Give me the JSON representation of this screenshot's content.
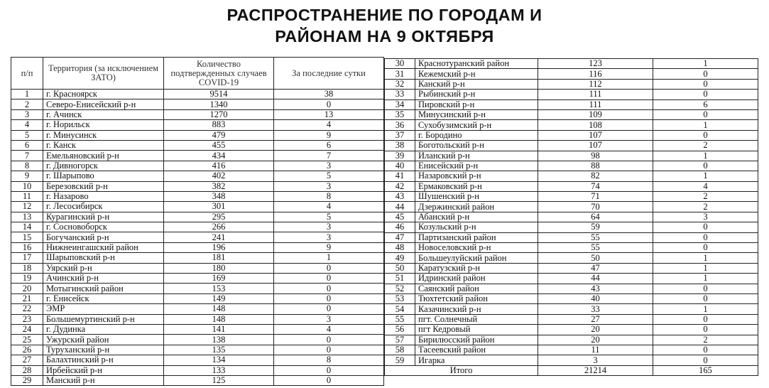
{
  "title": {
    "line1": "РАСПРОСТРАНЕНИЕ ПО ГОРОДАМ И",
    "line2": "РАЙОНАМ НА 9 ОКТЯБРЯ"
  },
  "headers": {
    "num": "п/п",
    "territory": "Территория (за исключением ЗАТО)",
    "total": "Количество подтвержденных случаев COVID-19",
    "day": "За последние сутки"
  },
  "rows": [
    [
      "1",
      "г. Красноярск",
      "9514",
      "38"
    ],
    [
      "2",
      "Северо-Енисейский р-н",
      "1340",
      "0"
    ],
    [
      "3",
      "г. Ачинск",
      "1270",
      "13"
    ],
    [
      "4",
      "г. Норильск",
      "883",
      "4"
    ],
    [
      "5",
      "г. Минусинск",
      "479",
      "9"
    ],
    [
      "6",
      "г. Канск",
      "455",
      "6"
    ],
    [
      "7",
      "Емельяновский р-н",
      "434",
      "7"
    ],
    [
      "8",
      "г. Дивногорск",
      "416",
      "3"
    ],
    [
      "9",
      "г. Шарыпово",
      "402",
      "5"
    ],
    [
      "10",
      "Березовский р-н",
      "382",
      "3"
    ],
    [
      "11",
      "г. Назарово",
      "348",
      "8"
    ],
    [
      "12",
      "г. Лесосибирск",
      "301",
      "4"
    ],
    [
      "13",
      "Курагинский р-н",
      "295",
      "5"
    ],
    [
      "14",
      "г. Сосновоборск",
      "266",
      "3"
    ],
    [
      "15",
      "Богучанский р-н",
      "241",
      "3"
    ],
    [
      "16",
      "Нижнеингашский район",
      "196",
      "9"
    ],
    [
      "17",
      "Шарыповский р-н",
      "181",
      "1"
    ],
    [
      "18",
      "Уярский р-н",
      "180",
      "0"
    ],
    [
      "19",
      "Ачинский р-н",
      "169",
      "0"
    ],
    [
      "20",
      "Мотыгинский район",
      "153",
      "0"
    ],
    [
      "21",
      "г. Енисейск",
      "149",
      "0"
    ],
    [
      "22",
      "ЭМР",
      "148",
      "0"
    ],
    [
      "23",
      "Большемуртинский р-н",
      "148",
      "3"
    ],
    [
      "24",
      "г. Дудинка",
      "141",
      "4"
    ],
    [
      "25",
      "Ужурский район",
      "138",
      "0"
    ],
    [
      "26",
      "Туруханский р-н",
      "135",
      "0"
    ],
    [
      "27",
      "Балахтинский р-н",
      "134",
      "8"
    ],
    [
      "28",
      "Ирбейский р-н",
      "133",
      "0"
    ],
    [
      "29",
      "Манский р-н",
      "125",
      "0"
    ],
    [
      "30",
      "Краснотуранский район",
      "123",
      "1"
    ],
    [
      "31",
      "Кежемский р-н",
      "116",
      "0"
    ],
    [
      "32",
      "Канский р-н",
      "112",
      "0"
    ],
    [
      "33",
      "Рыбинский р-н",
      "111",
      "0"
    ],
    [
      "34",
      "Пировский р-н",
      "111",
      "6"
    ],
    [
      "35",
      "Минусинский р-н",
      "109",
      "0"
    ],
    [
      "36",
      "Сухобузимский р-н",
      "108",
      "1"
    ],
    [
      "37",
      "г. Бородино",
      "107",
      "0"
    ],
    [
      "38",
      "Боготольский р-н",
      "107",
      "2"
    ],
    [
      "39",
      "Иланский р-н",
      "98",
      "1"
    ],
    [
      "40",
      "Енисейский р-н",
      "88",
      "0"
    ],
    [
      "41",
      "Назаровский р-н",
      "82",
      "1"
    ],
    [
      "42",
      "Ермаковский р-н",
      "74",
      "4"
    ],
    [
      "43",
      "Шушенский р-н",
      "71",
      "2"
    ],
    [
      "44",
      "Дзержинский район",
      "70",
      "2"
    ],
    [
      "45",
      "Абанский р-н",
      "64",
      "3"
    ],
    [
      "46",
      "Козульский р-н",
      "59",
      "0"
    ],
    [
      "47",
      "Партизанский район",
      "55",
      "0"
    ],
    [
      "48",
      "Новоселовский р-н",
      "55",
      "0"
    ],
    [
      "49",
      "Большеулуйский район",
      "50",
      "1"
    ],
    [
      "50",
      "Каратузский р-н",
      "47",
      "1"
    ],
    [
      "51",
      "Идринский район",
      "44",
      "1"
    ],
    [
      "52",
      "Саянский район",
      "43",
      "0"
    ],
    [
      "53",
      "Тюхтетский район",
      "40",
      "0"
    ],
    [
      "54",
      "Казачинский р-н",
      "33",
      "1"
    ],
    [
      "55",
      "пгт. Солнечный",
      "27",
      "0"
    ],
    [
      "56",
      "пгт Кедровый",
      "20",
      "0"
    ],
    [
      "57",
      "Бирилюсский район",
      "20",
      "2"
    ],
    [
      "58",
      "Тасеевский район",
      "11",
      "0"
    ],
    [
      "59",
      "Игарка",
      "3",
      "0"
    ]
  ],
  "totals": {
    "label": "Итого",
    "total": "21214",
    "day": "165"
  }
}
